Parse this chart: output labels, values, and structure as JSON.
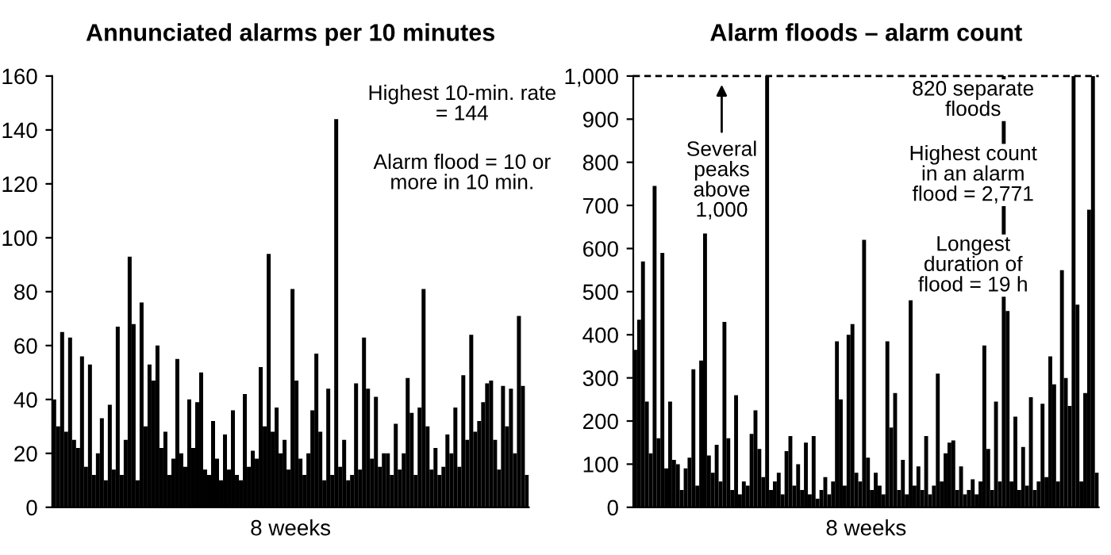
{
  "chart_data": [
    {
      "type": "bar",
      "title": "Annunciated alarms per 10 minutes",
      "xlabel": "8 weeks",
      "categories": [
        null,
        null,
        null,
        null,
        null,
        null,
        null,
        null,
        null,
        null,
        null,
        null,
        null,
        null,
        null,
        null,
        null,
        null,
        null,
        null,
        null,
        null,
        null,
        null,
        null,
        null,
        null,
        null,
        null,
        null,
        null,
        null,
        null,
        null,
        null,
        null,
        null,
        null,
        null,
        null,
        null,
        null,
        null,
        null,
        null,
        null,
        null,
        null,
        null,
        null,
        null,
        null,
        null,
        null,
        null,
        null,
        null,
        null,
        null,
        null,
        null,
        null,
        null,
        null,
        null,
        null,
        null,
        null,
        null,
        null,
        null,
        null,
        null,
        null,
        null,
        null,
        null,
        null,
        null,
        null,
        null,
        null,
        null,
        null,
        null,
        null,
        null,
        null,
        null,
        null,
        null,
        null,
        null,
        null,
        null,
        null,
        null,
        null,
        null,
        null,
        null,
        null,
        null,
        null,
        null,
        null,
        null,
        null,
        null,
        null,
        null,
        null,
        null,
        null,
        null,
        null,
        null,
        null,
        null,
        null
      ],
      "values": [
        40,
        30,
        65,
        28,
        63,
        25,
        22,
        56,
        15,
        53,
        12,
        20,
        33,
        10,
        38,
        14,
        67,
        12,
        25,
        93,
        68,
        10,
        76,
        30,
        53,
        47,
        60,
        22,
        28,
        12,
        18,
        55,
        20,
        15,
        40,
        22,
        39,
        50,
        14,
        12,
        32,
        18,
        10,
        27,
        14,
        36,
        12,
        10,
        42,
        15,
        21,
        18,
        52,
        30,
        94,
        28,
        37,
        20,
        25,
        14,
        81,
        47,
        18,
        12,
        20,
        36,
        57,
        28,
        10,
        44,
        12,
        144,
        15,
        25,
        10,
        12,
        46,
        14,
        63,
        44,
        18,
        41,
        15,
        20,
        20,
        12,
        31,
        14,
        20,
        48,
        35,
        12,
        37,
        81,
        30,
        14,
        22,
        12,
        15,
        27,
        20,
        37,
        15,
        49,
        25,
        64,
        28,
        32,
        39,
        46,
        47,
        25,
        14,
        45,
        30,
        44,
        20,
        71,
        45,
        12
      ],
      "color": "#000000",
      "ylim": [
        0,
        160
      ],
      "yticks": [
        0,
        20,
        40,
        60,
        80,
        100,
        120,
        140,
        160
      ],
      "grid": false,
      "annotations": [
        "Highest 10-min. rate\n= 144",
        "Alarm flood = 10 or\nmore in 10 min."
      ]
    },
    {
      "type": "bar",
      "title": "Alarm floods – alarm count",
      "xlabel": "8 weeks",
      "categories": [
        null,
        null,
        null,
        null,
        null,
        null,
        null,
        null,
        null,
        null,
        null,
        null,
        null,
        null,
        null,
        null,
        null,
        null,
        null,
        null,
        null,
        null,
        null,
        null,
        null,
        null,
        null,
        null,
        null,
        null,
        null,
        null,
        null,
        null,
        null,
        null,
        null,
        null,
        null,
        null,
        null,
        null,
        null,
        null,
        null,
        null,
        null,
        null,
        null,
        null,
        null,
        null,
        null,
        null,
        null,
        null,
        null,
        null,
        null,
        null,
        null,
        null,
        null,
        null,
        null,
        null,
        null,
        null,
        null,
        null,
        null,
        null,
        null,
        null,
        null,
        null,
        null,
        null,
        null,
        null,
        null,
        null,
        null,
        null,
        null,
        null,
        null,
        null,
        null,
        null,
        null,
        null,
        null,
        null,
        null,
        null,
        null,
        null,
        null,
        null,
        null,
        null,
        null,
        null,
        null,
        null,
        null,
        null,
        null,
        null,
        null,
        null,
        null,
        null,
        null,
        null,
        null,
        null,
        null,
        null
      ],
      "values": [
        365,
        435,
        570,
        245,
        125,
        745,
        160,
        590,
        90,
        245,
        110,
        100,
        40,
        90,
        115,
        320,
        50,
        340,
        635,
        120,
        80,
        145,
        60,
        430,
        160,
        40,
        260,
        30,
        60,
        50,
        170,
        225,
        135,
        70,
        1000,
        40,
        60,
        80,
        30,
        130,
        165,
        50,
        100,
        40,
        150,
        30,
        165,
        20,
        40,
        70,
        30,
        60,
        385,
        250,
        50,
        400,
        425,
        80,
        60,
        620,
        115,
        40,
        80,
        50,
        30,
        385,
        185,
        265,
        40,
        110,
        30,
        480,
        50,
        95,
        40,
        165,
        30,
        50,
        310,
        60,
        125,
        150,
        155,
        40,
        95,
        30,
        40,
        65,
        30,
        60,
        375,
        135,
        40,
        245,
        60,
        1000,
        455,
        60,
        210,
        40,
        140,
        50,
        255,
        40,
        60,
        240,
        70,
        350,
        285,
        60,
        550,
        300,
        235,
        1000,
        470,
        60,
        265,
        690,
        1000,
        80
      ],
      "color": "#000000",
      "ylim": [
        0,
        1000
      ],
      "yticks": [
        0,
        100,
        200,
        300,
        400,
        500,
        600,
        700,
        800,
        900,
        {
          "value": 1000,
          "label": "1,000"
        }
      ],
      "grid": false,
      "ref_lines": [
        {
          "axis": "y",
          "value": 1000,
          "line_style": "dashed",
          "color": "#000000"
        }
      ],
      "annotations": [
        "Several\npeaks\nabove\n1,000",
        "820 separate\nfloods",
        "Highest count\nin an alarm\nflood = 2,771",
        "Longest\nduration of\nflood = 19 h"
      ]
    }
  ]
}
